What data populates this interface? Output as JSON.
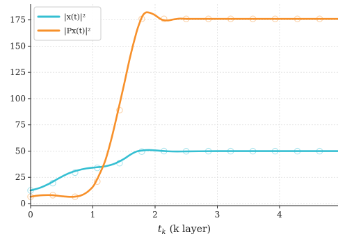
{
  "chart_data": {
    "type": "line",
    "title": "",
    "xlabel": "t_k (k layer)",
    "xlabel_main": "t",
    "xlabel_sub": "k",
    "xlabel_rest": "(k layer)",
    "ylabel": "",
    "xlim": [
      0,
      4.95
    ],
    "ylim": [
      -2,
      190
    ],
    "xticks": [
      0,
      1,
      2,
      3,
      4
    ],
    "yticks": [
      0,
      25,
      50,
      75,
      100,
      125,
      150,
      175
    ],
    "grid": true,
    "legend_position": "top-left",
    "series": [
      {
        "name": "|x(t)|²",
        "color": "#35bfd2",
        "curve_x": [
          0,
          0.15,
          0.3,
          0.45,
          0.6,
          0.75,
          0.9,
          1.05,
          1.2,
          1.35,
          1.5,
          1.6,
          1.7,
          1.8,
          1.9,
          2.0,
          2.1,
          2.2,
          2.35,
          2.5,
          2.7,
          3.0,
          3.5,
          4.0,
          4.5,
          4.95
        ],
        "curve_y": [
          12.5,
          15,
          19,
          24,
          28.5,
          31.5,
          33.5,
          34.5,
          35.5,
          38,
          42.5,
          46.5,
          49.5,
          50.6,
          51,
          50.7,
          50.2,
          49.8,
          49.6,
          49.7,
          49.8,
          49.9,
          49.9,
          49.9,
          49.9,
          49.9
        ],
        "marker_x": [
          0,
          0.357,
          0.714,
          1.071,
          1.429,
          1.786,
          2.143,
          2.5,
          2.857,
          3.214,
          3.571,
          3.929,
          4.286,
          4.643
        ],
        "marker_y": [
          12.5,
          19.5,
          29.5,
          34,
          38.5,
          49.5,
          50,
          49.8,
          49.9,
          49.9,
          49.9,
          49.9,
          49.9,
          49.9
        ]
      },
      {
        "name": "|Px(t)|²",
        "color": "#f7902a",
        "curve_x": [
          0,
          0.1,
          0.2,
          0.35,
          0.5,
          0.6,
          0.7,
          0.8,
          0.9,
          1.0,
          1.05,
          1.1,
          1.2,
          1.3,
          1.4,
          1.5,
          1.6,
          1.7,
          1.75,
          1.8,
          1.85,
          1.9,
          1.95,
          2.0,
          2.1,
          2.2,
          2.3,
          2.4,
          2.5,
          2.7,
          3.0,
          3.5,
          4.0,
          4.5,
          4.95
        ],
        "curve_y": [
          6.5,
          7.5,
          8,
          8,
          7,
          6.5,
          6.5,
          7.5,
          10.5,
          16,
          21,
          27,
          41,
          62,
          87,
          113,
          140,
          163,
          172,
          179,
          182,
          182,
          181,
          179.5,
          175.5,
          174.5,
          175.5,
          176.2,
          176,
          176,
          176,
          176,
          176,
          176,
          176
        ],
        "marker_x": [
          0,
          0.357,
          0.714,
          1.071,
          1.429,
          1.786,
          2.143,
          2.5,
          2.857,
          3.214,
          3.571,
          3.929,
          4.286,
          4.643
        ],
        "marker_y": [
          6.5,
          8,
          6.5,
          21,
          89,
          176,
          176,
          176,
          176,
          176,
          176,
          176,
          176,
          176
        ]
      }
    ]
  }
}
